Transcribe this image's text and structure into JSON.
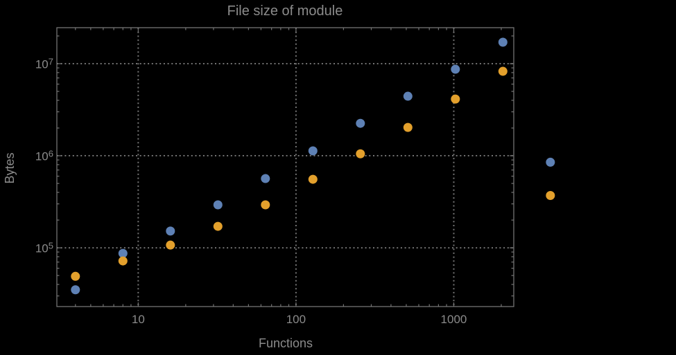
{
  "chart_data": {
    "type": "scatter",
    "title": "File size of module",
    "xlabel": "Functions",
    "ylabel": "Bytes",
    "x_scale": "log",
    "y_scale": "log",
    "xlim": [
      3.05,
      2400
    ],
    "ylim": [
      23000,
      24600000
    ],
    "grid": "dotted-major",
    "legend": "none",
    "x_ticks": [
      {
        "value": 10,
        "label": "10"
      },
      {
        "value": 100,
        "label": "100"
      },
      {
        "value": 1000,
        "label": "1000"
      }
    ],
    "y_ticks": [
      {
        "value": 100000,
        "base": "10",
        "exp": "5"
      },
      {
        "value": 1000000,
        "base": "10",
        "exp": "6"
      },
      {
        "value": 10000000,
        "base": "10",
        "exp": "7"
      }
    ],
    "series": [
      {
        "name": "series-blue",
        "color": "#5e81b5",
        "x": [
          4,
          8,
          16,
          32,
          64,
          128,
          256,
          512,
          1024,
          2048,
          4096
        ],
        "y": [
          35000,
          87000,
          152000,
          293000,
          565000,
          1130000,
          2250000,
          4430000,
          8700000,
          17100000,
          850000
        ]
      },
      {
        "name": "series-orange",
        "color": "#e3a02c",
        "x": [
          4,
          8,
          16,
          32,
          64,
          128,
          256,
          512,
          1024,
          2048,
          4096
        ],
        "y": [
          49000,
          72000,
          107000,
          171000,
          293000,
          555000,
          1050000,
          2030000,
          4130000,
          8260000,
          370000
        ]
      }
    ],
    "colors": {
      "background": "#000000",
      "frame": "#747474",
      "grid": "#747474",
      "text": "#8b8b8b"
    }
  }
}
